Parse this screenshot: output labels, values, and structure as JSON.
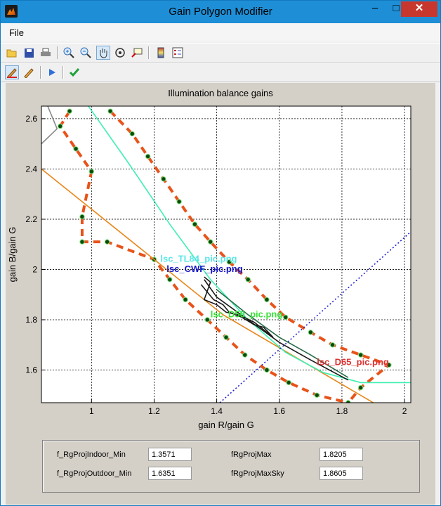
{
  "window": {
    "title": "Gain Polygon Modifier",
    "min_glyph": "‒",
    "max_glyph": "□",
    "close_glyph": "✕"
  },
  "menu": {
    "file_label": "File"
  },
  "toolbar": {
    "row1_icons": [
      "open-icon",
      "save-icon",
      "print-icon",
      "zoom-in-icon",
      "zoom-out-icon",
      "pan-icon",
      "rotate-icon",
      "data-cursor-icon",
      "colorbar-icon",
      "legend-icon"
    ],
    "row2_icons": [
      "pencil-red-icon",
      "pencil-orange-icon",
      "play-icon",
      "checkmark-icon"
    ]
  },
  "chart_data": {
    "type": "line",
    "title": "Illumination balance gains",
    "xlabel": "gain R/gain G",
    "ylabel": "gain B/gain G",
    "xlim": [
      0.84,
      2.02
    ],
    "ylim": [
      1.47,
      2.65
    ],
    "xticks": [
      1,
      1.2,
      1.4,
      1.6,
      1.8,
      2
    ],
    "yticks": [
      1.6,
      1.8,
      2,
      2.2,
      2.4,
      2.6
    ],
    "xtick_labels": [
      "1",
      "1.2",
      "1.4",
      "1.6",
      "1.8",
      "2"
    ],
    "ytick_labels": [
      "1.6",
      "1.8",
      "2",
      "2.2",
      "2.4",
      "2.6"
    ],
    "grid": true,
    "series": [
      {
        "kind": "polygon-outer",
        "color": "#e8531a",
        "style": "dashed-markers",
        "points": [
          [
            1.06,
            2.63
          ],
          [
            1.13,
            2.54
          ],
          [
            1.18,
            2.45
          ],
          [
            1.23,
            2.36
          ],
          [
            1.28,
            2.27
          ],
          [
            1.33,
            2.18
          ],
          [
            1.38,
            2.11
          ],
          [
            1.44,
            2.03
          ],
          [
            1.5,
            1.96
          ],
          [
            1.56,
            1.88
          ],
          [
            1.62,
            1.81
          ],
          [
            1.7,
            1.75
          ],
          [
            1.77,
            1.7
          ],
          [
            1.86,
            1.66
          ],
          [
            1.95,
            1.62
          ],
          [
            1.86,
            1.53
          ],
          [
            1.82,
            1.47
          ]
        ]
      },
      {
        "kind": "polygon-inner",
        "color": "#e8531a",
        "style": "dashed-markers",
        "points": [
          [
            0.93,
            2.63
          ],
          [
            0.9,
            2.57
          ],
          [
            0.95,
            2.48
          ],
          [
            1,
            2.39
          ],
          [
            0.97,
            2.21
          ],
          [
            0.97,
            2.11
          ],
          [
            1.05,
            2.11
          ],
          [
            1.2,
            2.04
          ],
          [
            1.25,
            1.96
          ],
          [
            1.3,
            1.88
          ],
          [
            1.37,
            1.8
          ],
          [
            1.43,
            1.73
          ],
          [
            1.49,
            1.66
          ],
          [
            1.56,
            1.6
          ],
          [
            1.63,
            1.55
          ],
          [
            1.72,
            1.5
          ],
          [
            1.82,
            1.47
          ]
        ]
      },
      {
        "kind": "line",
        "color": "#e8861a",
        "points": [
          [
            0.84,
            2.4
          ],
          [
            1.42,
            1.82
          ],
          [
            1.9,
            1.47
          ]
        ]
      },
      {
        "kind": "line",
        "color": "#3df0b0",
        "points": [
          [
            0.99,
            2.65
          ],
          [
            1.12,
            2.42
          ],
          [
            1.25,
            2.18
          ],
          [
            1.38,
            1.96
          ],
          [
            1.5,
            1.8
          ],
          [
            1.62,
            1.67
          ],
          [
            1.74,
            1.59
          ],
          [
            1.86,
            1.55
          ],
          [
            1.94,
            1.55
          ],
          [
            2.02,
            1.55
          ]
        ]
      },
      {
        "kind": "line",
        "color": "#2020d0",
        "style": "dotted",
        "points": [
          [
            1.41,
            1.47
          ],
          [
            2.02,
            2.15
          ]
        ]
      },
      {
        "kind": "line",
        "color": "#1a1a1a",
        "points": [
          [
            1.36,
            1.96
          ],
          [
            1.4,
            1.89
          ],
          [
            1.5,
            1.8
          ],
          [
            1.6,
            1.71
          ],
          [
            1.7,
            1.64
          ],
          [
            1.82,
            1.56
          ]
        ]
      },
      {
        "kind": "line",
        "color": "#1a1a1a",
        "points": [
          [
            1.36,
            1.97
          ],
          [
            1.38,
            1.95
          ],
          [
            1.36,
            1.88
          ],
          [
            1.4,
            1.86
          ],
          [
            1.43,
            1.83
          ],
          [
            1.47,
            1.82
          ],
          [
            1.52,
            1.79
          ],
          [
            1.58,
            1.73
          ]
        ]
      },
      {
        "kind": "line",
        "color": "#1a1a1a",
        "points": [
          [
            1.35,
            1.94
          ],
          [
            1.39,
            1.88
          ],
          [
            1.42,
            1.86
          ],
          [
            1.44,
            1.83
          ],
          [
            1.48,
            1.81
          ],
          [
            1.52,
            1.78
          ],
          [
            1.55,
            1.77
          ],
          [
            1.58,
            1.73
          ]
        ]
      },
      {
        "kind": "line",
        "color": "#2a6a4a",
        "points": [
          [
            1.4,
            1.92
          ],
          [
            1.5,
            1.82
          ],
          [
            1.6,
            1.73
          ],
          [
            1.7,
            1.66
          ],
          [
            1.82,
            1.57
          ]
        ]
      },
      {
        "kind": "line",
        "color": "#888888",
        "points": [
          [
            0.84,
            2.5
          ],
          [
            0.89,
            2.56
          ],
          [
            0.86,
            2.65
          ]
        ]
      }
    ],
    "annotations": [
      {
        "text": "lsc_TL84_pic.png",
        "x": 1.22,
        "y": 2.03,
        "color": "#5be6e6"
      },
      {
        "text": "lsc_CWF_pic.png",
        "x": 1.24,
        "y": 1.99,
        "color": "#1414c8"
      },
      {
        "text": "lsc_D50_pic.png",
        "x": 1.38,
        "y": 1.81,
        "color": "#3ae03a"
      },
      {
        "text": "lsc_D65_pic.png",
        "x": 1.72,
        "y": 1.62,
        "color": "#e03030"
      }
    ]
  },
  "panel": {
    "fields": [
      {
        "label": "f_RgProjIndoor_Min",
        "value": "1.3571"
      },
      {
        "label": "fRgProjMax",
        "value": "1.8205"
      },
      {
        "label": "f_RgProjOutdoor_Min",
        "value": "1.6351"
      },
      {
        "label": "fRgProjMaxSky",
        "value": "1.8605"
      }
    ]
  }
}
